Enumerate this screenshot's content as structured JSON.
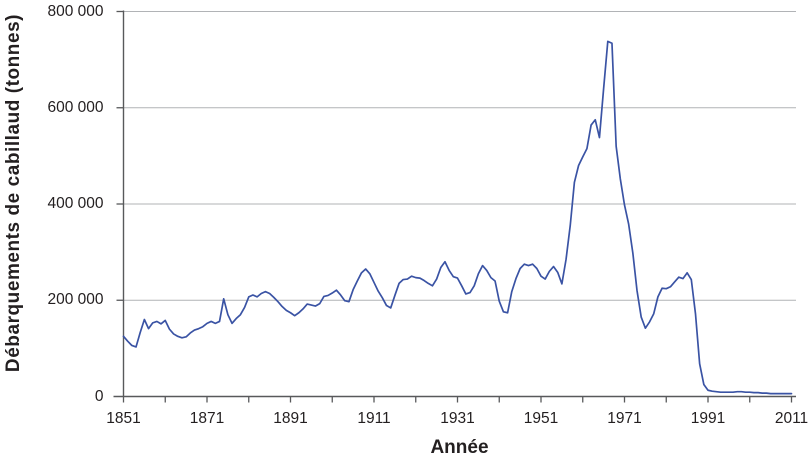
{
  "chart_data": {
    "type": "line",
    "title": "",
    "xlabel": "Année",
    "ylabel": "Débarquements de cabillaud (tonnes)",
    "xlim": [
      1851,
      2011
    ],
    "ylim": [
      0,
      800000
    ],
    "grid": "horizontal-only",
    "legend": "none",
    "x_minor_tick_step": 10,
    "x_ticks": [
      {
        "value": 1851,
        "label": "1851"
      },
      {
        "value": 1871,
        "label": "1871"
      },
      {
        "value": 1891,
        "label": "1891"
      },
      {
        "value": 1911,
        "label": "1911"
      },
      {
        "value": 1931,
        "label": "1931"
      },
      {
        "value": 1951,
        "label": "1951"
      },
      {
        "value": 1971,
        "label": "1971"
      },
      {
        "value": 1991,
        "label": "1991"
      },
      {
        "value": 2011,
        "label": "2011"
      }
    ],
    "y_ticks": [
      {
        "value": 0,
        "label": "0"
      },
      {
        "value": 200000,
        "label": "200 000"
      },
      {
        "value": 400000,
        "label": "400 000"
      },
      {
        "value": 600000,
        "label": "600 000"
      },
      {
        "value": 800000,
        "label": "800 000"
      }
    ],
    "colors": {
      "line": "#3a53a4",
      "axis": "#58595b",
      "grid": "#b1b3b6",
      "text": "#231f20",
      "background": "#ffffff"
    },
    "series": [
      {
        "name": "Débarquements de cabillaud (tonnes)",
        "x": [
          1851,
          1852,
          1853,
          1854,
          1855,
          1856,
          1857,
          1858,
          1859,
          1860,
          1861,
          1862,
          1863,
          1864,
          1865,
          1866,
          1867,
          1868,
          1869,
          1870,
          1871,
          1872,
          1873,
          1874,
          1875,
          1876,
          1877,
          1878,
          1879,
          1880,
          1881,
          1882,
          1883,
          1884,
          1885,
          1886,
          1887,
          1888,
          1889,
          1890,
          1891,
          1892,
          1893,
          1894,
          1895,
          1896,
          1897,
          1898,
          1899,
          1900,
          1901,
          1902,
          1903,
          1904,
          1905,
          1906,
          1907,
          1908,
          1909,
          1910,
          1911,
          1912,
          1913,
          1914,
          1915,
          1916,
          1917,
          1918,
          1919,
          1920,
          1921,
          1922,
          1923,
          1924,
          1925,
          1926,
          1927,
          1928,
          1929,
          1930,
          1931,
          1932,
          1933,
          1934,
          1935,
          1936,
          1937,
          1938,
          1939,
          1940,
          1941,
          1942,
          1943,
          1944,
          1945,
          1946,
          1947,
          1948,
          1949,
          1950,
          1951,
          1952,
          1953,
          1954,
          1955,
          1956,
          1957,
          1958,
          1959,
          1960,
          1961,
          1962,
          1963,
          1964,
          1965,
          1966,
          1967,
          1968,
          1969,
          1970,
          1971,
          1972,
          1973,
          1974,
          1975,
          1976,
          1977,
          1978,
          1979,
          1980,
          1981,
          1982,
          1983,
          1984,
          1985,
          1986,
          1987,
          1988,
          1989,
          1990,
          1991,
          1992,
          1993,
          1994,
          1995,
          1996,
          1997,
          1998,
          1999,
          2000,
          2001,
          2002,
          2003,
          2004,
          2005,
          2006,
          2007,
          2008,
          2009,
          2010,
          2011
        ],
        "values": [
          125000,
          115000,
          106000,
          103000,
          133000,
          160000,
          141000,
          153000,
          156000,
          151000,
          158000,
          140000,
          130000,
          125000,
          122000,
          124000,
          132000,
          138000,
          141000,
          145000,
          152000,
          156000,
          152000,
          156000,
          203000,
          170000,
          152000,
          162000,
          170000,
          185000,
          207000,
          211000,
          207000,
          214000,
          218000,
          214000,
          206000,
          197000,
          187000,
          179000,
          174000,
          168000,
          174000,
          182000,
          192000,
          190000,
          188000,
          193000,
          208000,
          210000,
          215000,
          221000,
          211000,
          199000,
          197000,
          222000,
          240000,
          257000,
          265000,
          255000,
          237000,
          219000,
          205000,
          189000,
          184000,
          210000,
          235000,
          243000,
          244000,
          250000,
          247000,
          246000,
          241000,
          235000,
          230000,
          244000,
          268000,
          280000,
          262000,
          249000,
          246000,
          230000,
          213000,
          216000,
          230000,
          255000,
          272000,
          262000,
          247000,
          240000,
          198000,
          176000,
          174000,
          218000,
          245000,
          266000,
          275000,
          272000,
          275000,
          266000,
          250000,
          244000,
          260000,
          270000,
          258000,
          234000,
          285000,
          355000,
          445000,
          480000,
          498000,
          515000,
          564000,
          575000,
          538000,
          640000,
          738000,
          734000,
          520000,
          452000,
          398000,
          358000,
          298000,
          220000,
          165000,
          142000,
          155000,
          172000,
          207000,
          225000,
          224000,
          228000,
          238000,
          248000,
          245000,
          257000,
          243000,
          172000,
          68000,
          25000,
          13000,
          11000,
          10000,
          9000,
          9000,
          9000,
          9000,
          10000,
          10000,
          9000,
          9000,
          8000,
          8000,
          7000,
          7000,
          6000,
          6000,
          6000,
          6000,
          6000,
          6000
        ]
      }
    ]
  }
}
